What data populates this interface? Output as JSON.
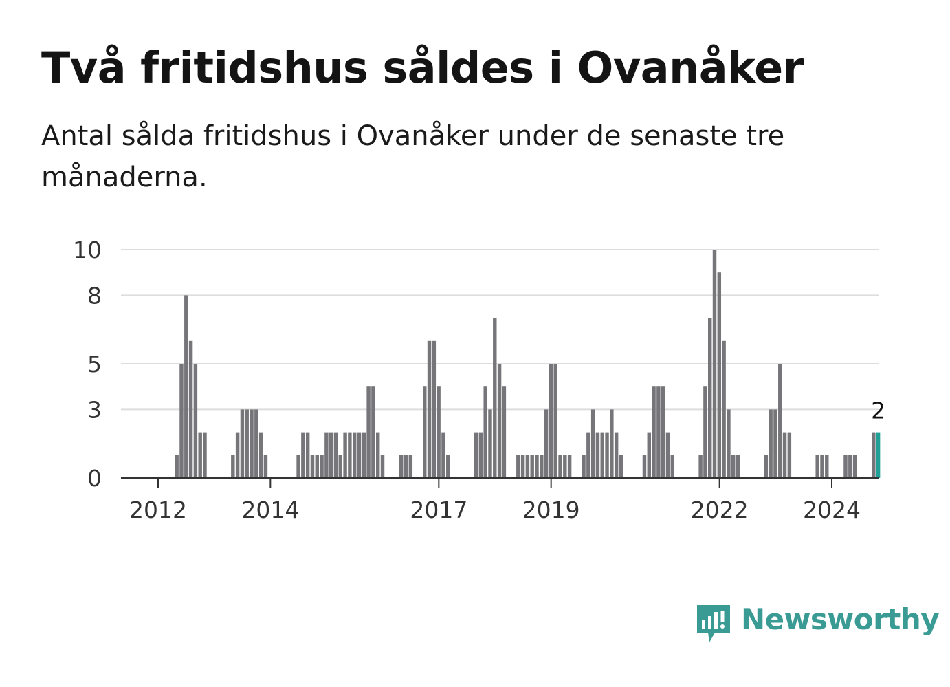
{
  "header": {
    "title": "Två fritidshus såldes i Ovanåker",
    "subtitle": "Antal sålda fritidshus i Ovanåker under de senaste tre månaderna."
  },
  "brand": {
    "name": "Newsworthy",
    "color": "#3a9b95",
    "icon": "newsworthy-logo-icon"
  },
  "colors": {
    "bar": "#76767a",
    "highlight": "#21a098",
    "grid": "#dddddd",
    "axis": "#333333"
  },
  "chart_data": {
    "type": "bar",
    "ylim": [
      0,
      10
    ],
    "y_ticks": [
      0,
      3,
      5,
      8,
      10
    ],
    "y_tick_labels": [
      "0",
      "3",
      "5",
      "8",
      "10"
    ],
    "x_ticks": [
      2012,
      2014,
      2017,
      2019,
      2022,
      2024
    ],
    "x_tick_labels": [
      "2012",
      "2014",
      "2017",
      "2019",
      "2022",
      "2024"
    ],
    "grid": true,
    "x_start": 2011.25,
    "step": 0.0833,
    "values": [
      0,
      0,
      0,
      0,
      0,
      0,
      0,
      0,
      0,
      0,
      0,
      0,
      0,
      1,
      5,
      8,
      6,
      5,
      2,
      2,
      0,
      0,
      0,
      0,
      0,
      1,
      2,
      3,
      3,
      3,
      3,
      2,
      1,
      0,
      0,
      0,
      0,
      0,
      0,
      1,
      2,
      2,
      1,
      1,
      1,
      2,
      2,
      2,
      1,
      2,
      2,
      2,
      2,
      2,
      4,
      4,
      2,
      1,
      0,
      0,
      0,
      1,
      1,
      1,
      0,
      0,
      4,
      6,
      6,
      4,
      2,
      1,
      0,
      0,
      0,
      0,
      0,
      2,
      2,
      4,
      3,
      7,
      5,
      4,
      0,
      0,
      1,
      1,
      1,
      1,
      1,
      1,
      3,
      5,
      5,
      1,
      1,
      1,
      0,
      0,
      1,
      2,
      3,
      2,
      2,
      2,
      3,
      2,
      1,
      0,
      0,
      0,
      0,
      1,
      2,
      4,
      4,
      4,
      2,
      1,
      0,
      0,
      0,
      0,
      0,
      1,
      4,
      7,
      10,
      9,
      6,
      3,
      1,
      1,
      0,
      0,
      0,
      0,
      0,
      1,
      3,
      3,
      5,
      2,
      2,
      0,
      0,
      0,
      0,
      0,
      1,
      1,
      1,
      0,
      0,
      0,
      1,
      1,
      1,
      0,
      0,
      0,
      2,
      2
    ],
    "highlight_last": 1,
    "annotation": {
      "text": "2"
    }
  }
}
